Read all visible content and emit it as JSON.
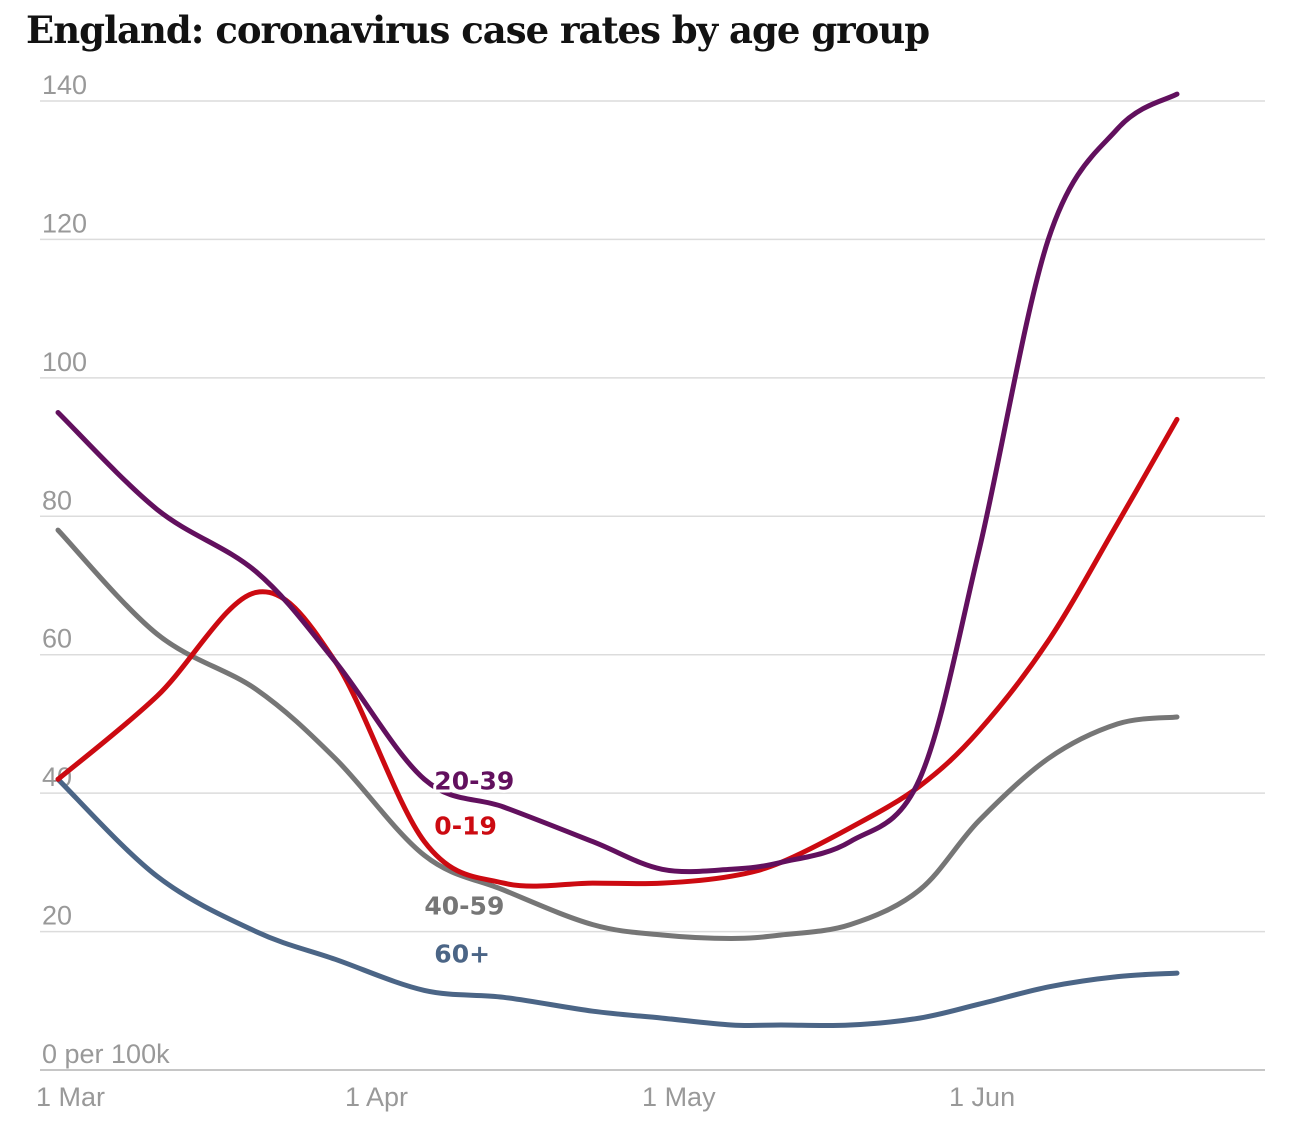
{
  "chart_data": {
    "type": "line",
    "title": "England: coronavirus case rates by age group",
    "xlabel": "",
    "ylabel": "",
    "ylim": [
      0,
      140
    ],
    "yticks": [
      0,
      20,
      40,
      60,
      80,
      100,
      120,
      140
    ],
    "yunit_label": "0 per 100k",
    "xlim_days": [
      0,
      113
    ],
    "xticks": [
      {
        "label": "1 Mar",
        "day": 0
      },
      {
        "label": "1 Apr",
        "day": 31
      },
      {
        "label": "1 May",
        "day": 61
      },
      {
        "label": "1 Jun",
        "day": 92
      }
    ],
    "grid": true,
    "x": [
      0,
      10,
      20,
      28,
      37,
      45,
      54,
      61,
      68,
      73,
      80,
      87,
      93,
      100,
      107,
      113
    ],
    "series": [
      {
        "name": "20-39",
        "color": "#62105e",
        "label_day": 38,
        "label_value": 40.5,
        "values": [
          95,
          81,
          72,
          59,
          42,
          38,
          33,
          29,
          29,
          30,
          33,
          42,
          75,
          120,
          136,
          141
        ]
      },
      {
        "name": "0-19",
        "color": "#cc0a11",
        "label_day": 38,
        "label_value": 34,
        "values": [
          42,
          54,
          69,
          59,
          33,
          27,
          27,
          27,
          28,
          30,
          35,
          41,
          49,
          62,
          79,
          94
        ]
      },
      {
        "name": "40-59",
        "color": "#767676",
        "label_day": 37,
        "label_value": 22.5,
        "values": [
          78,
          63,
          55,
          45,
          31,
          26,
          21,
          19.5,
          19,
          19.5,
          21,
          26,
          36,
          45,
          50,
          51
        ]
      },
      {
        "name": "60+",
        "color": "#4b6586",
        "label_day": 38,
        "label_value": 15.5,
        "values": [
          42,
          28,
          20,
          16,
          11.5,
          10.5,
          8.5,
          7.5,
          6.5,
          6.5,
          6.5,
          7.5,
          9.5,
          12,
          13.5,
          14
        ]
      }
    ]
  },
  "colors": {
    "grid": "#dcdcdc",
    "tick_text": "#999999",
    "title": "#121212"
  }
}
